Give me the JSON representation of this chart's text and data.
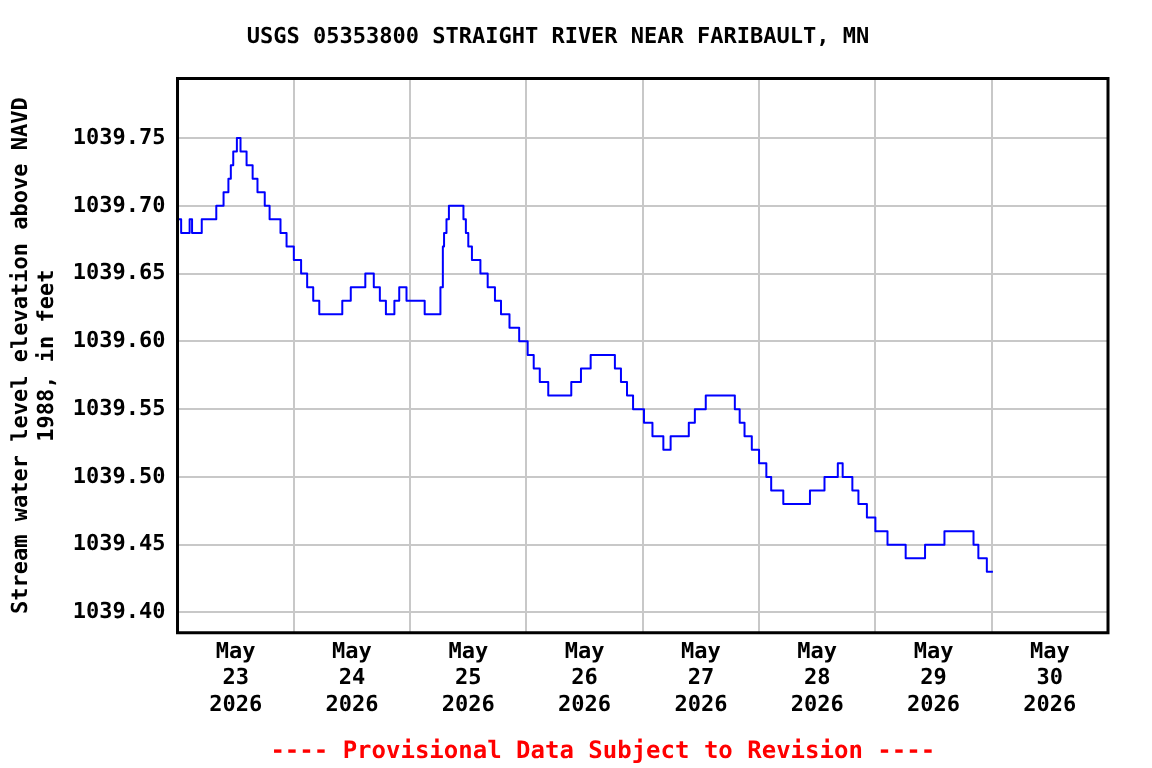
{
  "chart_data": {
    "type": "step",
    "title": "USGS 05353800 STRAIGHT RIVER NEAR FARIBAULT, MN",
    "ylabel": "Stream water level elevation above NAVD\n1988, in feet",
    "annotations": [
      "---- Provisional Data Subject to Revision ----"
    ],
    "grid": true,
    "marker": "none",
    "xlim": [
      "2026-05-23T00:00",
      "2026-05-31T00:00"
    ],
    "xticks": [
      {
        "value": "2026-05-23T12:00",
        "label": "May\n23\n2026"
      },
      {
        "value": "2026-05-24T00:00",
        "label": null
      },
      {
        "value": "2026-05-24T12:00",
        "label": "May\n24\n2026"
      },
      {
        "value": "2026-05-25T00:00",
        "label": null
      },
      {
        "value": "2026-05-25T12:00",
        "label": "May\n25\n2026"
      },
      {
        "value": "2026-05-26T00:00",
        "label": null
      },
      {
        "value": "2026-05-26T12:00",
        "label": "May\n26\n2026"
      },
      {
        "value": "2026-05-27T00:00",
        "label": null
      },
      {
        "value": "2026-05-27T12:00",
        "label": "May\n27\n2026"
      },
      {
        "value": "2026-05-28T00:00",
        "label": null
      },
      {
        "value": "2026-05-28T12:00",
        "label": "May\n28\n2026"
      },
      {
        "value": "2026-05-29T00:00",
        "label": null
      },
      {
        "value": "2026-05-29T12:00",
        "label": "May\n29\n2026"
      },
      {
        "value": "2026-05-30T00:00",
        "label": null
      },
      {
        "value": "2026-05-30T12:00",
        "label": "May\n30\n2026"
      }
    ],
    "ylim": [
      1039.385,
      1039.794
    ],
    "yticks": [
      {
        "value": 1039.4,
        "label": "1039.40"
      },
      1039.45,
      {
        "value": 1039.5,
        "label": "1039.50"
      },
      1039.55,
      {
        "value": 1039.6,
        "label": "1039.60"
      },
      1039.65,
      {
        "value": 1039.7,
        "label": "1039.70"
      },
      1039.75
    ],
    "series": [
      {
        "color": "#0000ff",
        "x": [
          "2026-05-23T00:00",
          "2026-05-23T00:45",
          "2026-05-23T02:30",
          "2026-05-23T03:00",
          "2026-05-23T05:00",
          "2026-05-23T08:00",
          "2026-05-23T09:30",
          "2026-05-23T10:30",
          "2026-05-23T11:00",
          "2026-05-23T11:30",
          "2026-05-23T12:15",
          "2026-05-23T13:00",
          "2026-05-23T14:15",
          "2026-05-23T15:30",
          "2026-05-23T16:30",
          "2026-05-23T18:00",
          "2026-05-23T19:00",
          "2026-05-23T21:15",
          "2026-05-23T22:30",
          "2026-05-24T00:00",
          "2026-05-24T01:30",
          "2026-05-24T02:45",
          "2026-05-24T04:00",
          "2026-05-24T05:15",
          "2026-05-24T10:00",
          "2026-05-24T11:45",
          "2026-05-24T14:45",
          "2026-05-24T16:30",
          "2026-05-24T17:45",
          "2026-05-24T19:00",
          "2026-05-24T20:45",
          "2026-05-24T21:45",
          "2026-05-24T23:15",
          "2026-05-25T03:00",
          "2026-05-25T06:15",
          "2026-05-25T06:45",
          "2026-05-25T07:00",
          "2026-05-25T07:30",
          "2026-05-25T08:00",
          "2026-05-25T11:00",
          "2026-05-25T11:30",
          "2026-05-25T12:00",
          "2026-05-25T12:45",
          "2026-05-25T14:30",
          "2026-05-25T16:00",
          "2026-05-25T17:30",
          "2026-05-25T18:45",
          "2026-05-25T20:30",
          "2026-05-25T22:30",
          "2026-05-26T00:15",
          "2026-05-26T01:30",
          "2026-05-26T02:45",
          "2026-05-26T04:30",
          "2026-05-26T09:15",
          "2026-05-26T11:15",
          "2026-05-26T13:15",
          "2026-05-26T18:15",
          "2026-05-26T19:30",
          "2026-05-26T20:45",
          "2026-05-26T22:00",
          "2026-05-27T00:15",
          "2026-05-27T02:00",
          "2026-05-27T04:15",
          "2026-05-27T05:45",
          "2026-05-27T09:30",
          "2026-05-27T10:45",
          "2026-05-27T13:00",
          "2026-05-27T19:00",
          "2026-05-27T20:00",
          "2026-05-27T21:00",
          "2026-05-27T22:30",
          "2026-05-28T00:00",
          "2026-05-28T01:30",
          "2026-05-28T02:30",
          "2026-05-28T05:00",
          "2026-05-28T10:30",
          "2026-05-28T13:30",
          "2026-05-28T16:15",
          "2026-05-28T17:15",
          "2026-05-28T19:15",
          "2026-05-28T20:30",
          "2026-05-28T22:15",
          "2026-05-29T00:00",
          "2026-05-29T02:30",
          "2026-05-29T06:15",
          "2026-05-29T10:15",
          "2026-05-29T14:15",
          "2026-05-29T20:15",
          "2026-05-29T21:15",
          "2026-05-29T23:00",
          "2026-05-30T00:15"
        ],
        "values": [
          1039.69,
          1039.68,
          1039.69,
          1039.68,
          1039.69,
          1039.7,
          1039.71,
          1039.72,
          1039.73,
          1039.74,
          1039.75,
          1039.74,
          1039.73,
          1039.72,
          1039.71,
          1039.7,
          1039.69,
          1039.68,
          1039.67,
          1039.66,
          1039.65,
          1039.64,
          1039.63,
          1039.62,
          1039.63,
          1039.64,
          1039.65,
          1039.64,
          1039.63,
          1039.62,
          1039.63,
          1039.64,
          1039.63,
          1039.62,
          1039.64,
          1039.67,
          1039.68,
          1039.69,
          1039.7,
          1039.69,
          1039.68,
          1039.67,
          1039.66,
          1039.65,
          1039.64,
          1039.63,
          1039.62,
          1039.61,
          1039.6,
          1039.59,
          1039.58,
          1039.57,
          1039.56,
          1039.57,
          1039.58,
          1039.59,
          1039.58,
          1039.57,
          1039.56,
          1039.55,
          1039.54,
          1039.53,
          1039.52,
          1039.53,
          1039.54,
          1039.55,
          1039.56,
          1039.55,
          1039.54,
          1039.53,
          1039.52,
          1039.51,
          1039.5,
          1039.49,
          1039.48,
          1039.49,
          1039.5,
          1039.51,
          1039.5,
          1039.49,
          1039.48,
          1039.47,
          1039.46,
          1039.45,
          1039.44,
          1039.45,
          1039.46,
          1039.45,
          1039.44,
          1039.43,
          1039.43
        ]
      }
    ]
  }
}
